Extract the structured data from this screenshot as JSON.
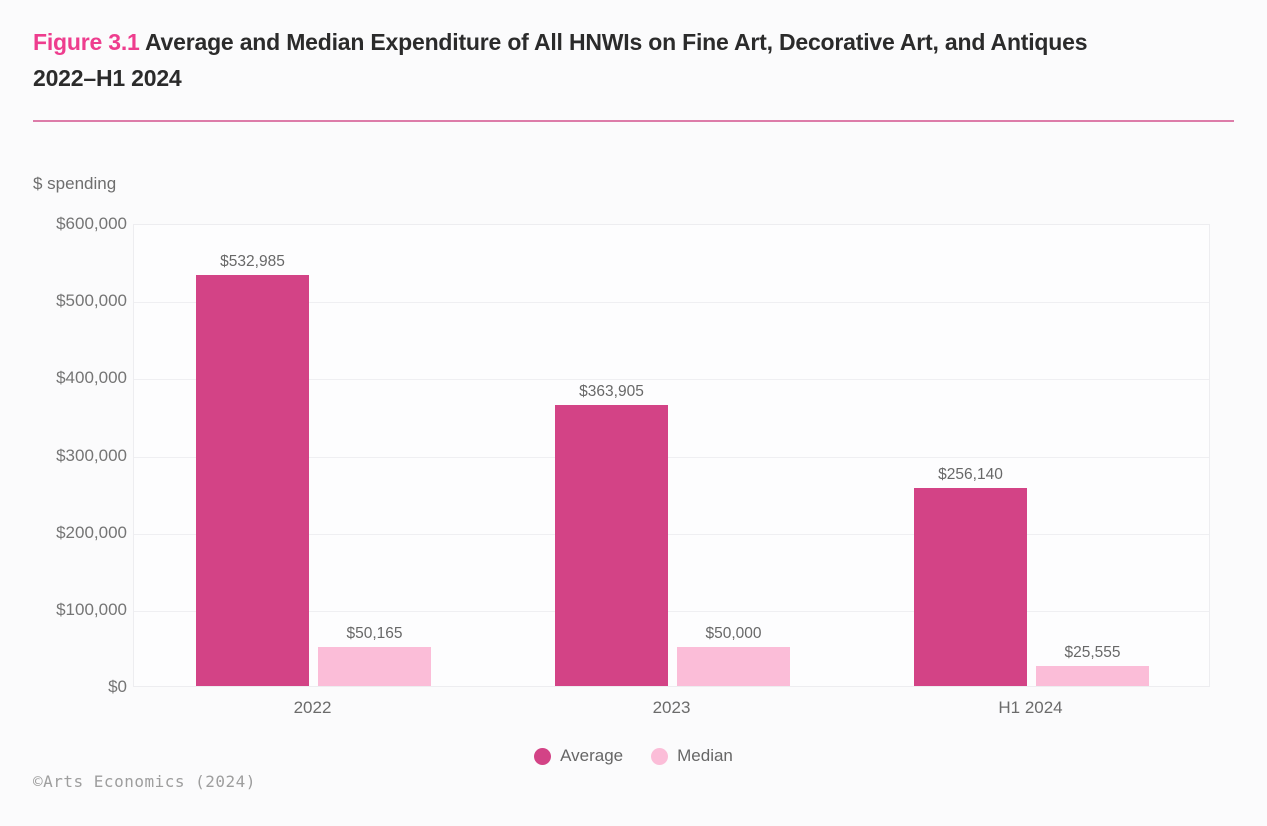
{
  "figure": {
    "label": "Figure 3.1",
    "title": "Average and Median Expenditure of All HNWIs on Fine Art, Decorative Art, and Antiques",
    "title_line2": "2022–H1 2024"
  },
  "colors": {
    "figure_label_pink": "#ee3d8e",
    "divider_pink": "#dd7ca9",
    "average_bar": "#d34386",
    "median_bar": "#fbbdd8",
    "title_text": "#2b2b2b",
    "axis_text_gray": "#6e6e6e",
    "page_background": "#fbfbfc"
  },
  "chart_data": {
    "type": "bar",
    "title": "Average and Median Expenditure of All HNWIs on Fine Art, Decorative Art, and Antiques 2022–H1 2024",
    "ylabel": "$ spending",
    "xlabel": "",
    "categories": [
      "2022",
      "2023",
      "H1 2024"
    ],
    "series": [
      {
        "name": "Average",
        "color": "#d34386",
        "values": [
          532985,
          363905,
          256140
        ],
        "labels": [
          "$532,985",
          "$363,905",
          "$256,140"
        ]
      },
      {
        "name": "Median",
        "color": "#fbbdd8",
        "values": [
          50165,
          50000,
          25555
        ],
        "labels": [
          "$50,165",
          "$50,000",
          "$25,555"
        ]
      }
    ],
    "ylim": [
      0,
      600000
    ],
    "y_tick_values": [
      600000,
      500000,
      400000,
      300000,
      200000,
      100000,
      0
    ],
    "y_tick_labels": [
      "$600,000",
      "$500,000",
      "$400,000",
      "$300,000",
      "$200,000",
      "$100,000",
      "$0"
    ],
    "grid": "horizontal",
    "legend_position": "bottom-center"
  },
  "footer": {
    "credit": "©Arts Economics (2024)"
  }
}
